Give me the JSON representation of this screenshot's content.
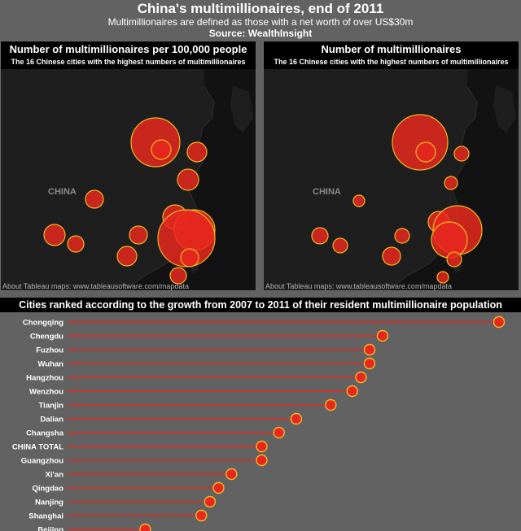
{
  "header": {
    "title": "China's multimillionaires, end of 2011",
    "subtitle": "Multimillionaires are defined as those with a net worth of over US$30m",
    "source": "Source: WealthInsight"
  },
  "colors": {
    "bubble_fill": "#e8281e",
    "bubble_stroke": "#f2b81e",
    "stem": "#e8281e",
    "background": "#626262"
  },
  "map_left": {
    "title": "Number of multimillionaires per 100,000 people",
    "subtitle": "The 16 Chinese cities with the highest numbers of multimillionaires",
    "country_label": "CHINA",
    "attribution": "About Tableau maps: www.tableausoftware.com/mapdata"
  },
  "map_right": {
    "title": "Number of multimillionaires",
    "subtitle": "The 16 Chinese cities with the highest numbers of multimillionaires",
    "country_label": "CHINA",
    "attribution": "About Tableau maps: www.tableausoftware.com/mapdata"
  },
  "ranking": {
    "title": "Cities ranked according to the growth from 2007 to 2011 of their resident multimillionaire population"
  },
  "chart_data": {
    "type": "bar",
    "title": "Cities ranked according to the growth from 2007 to 2011 of their resident multimillionaire population",
    "categories": [
      "Chongqing",
      "Chengdu",
      "Fuzhou",
      "Wuhan",
      "Hangzhou",
      "Wenzhou",
      "Tianjin",
      "Dalian",
      "Changsha",
      "CHINA TOTAL",
      "Guangzhou",
      "Xi'an",
      "Qingdao",
      "Nanjing",
      "Shanghai",
      "Beijing"
    ],
    "values": [
      100,
      73,
      70,
      70,
      68,
      66,
      61,
      53,
      49,
      45,
      45,
      38,
      35,
      33,
      31,
      18
    ],
    "grid": false
  }
}
